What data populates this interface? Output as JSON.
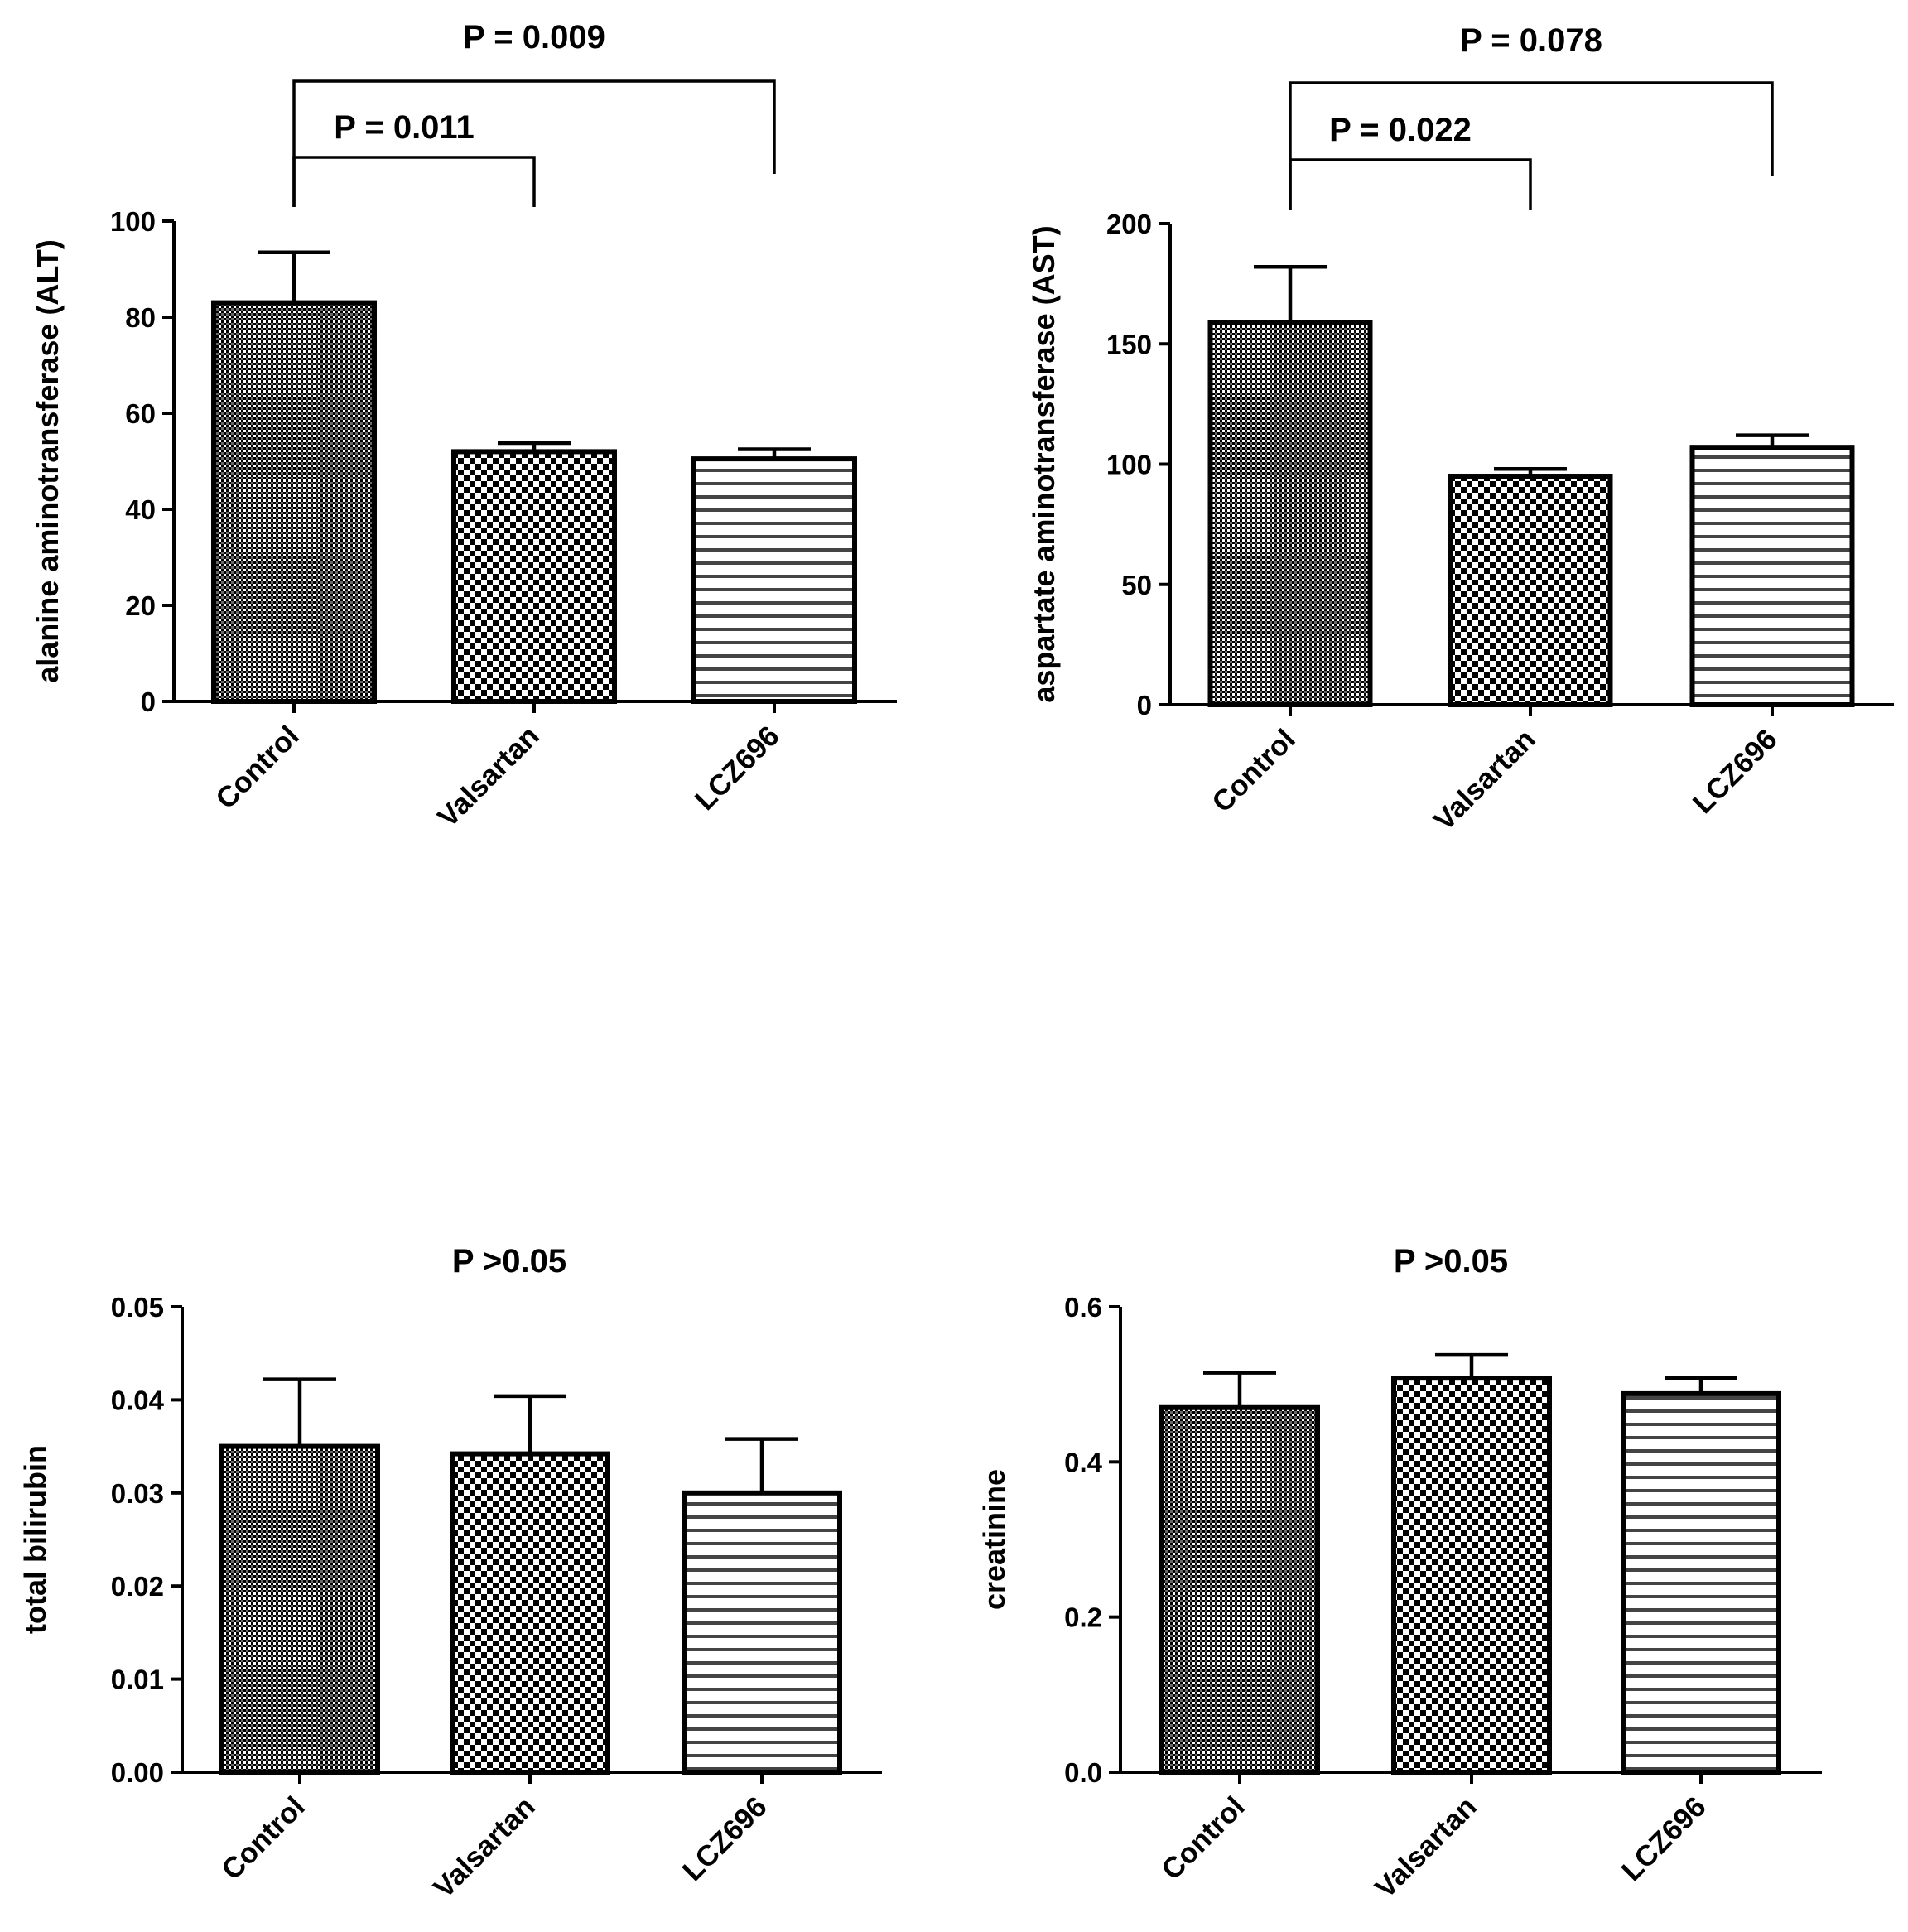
{
  "chart_data": [
    {
      "type": "bar",
      "id": "alt",
      "categories": [
        "Control",
        "Valsartan",
        "LCZ696"
      ],
      "values": [
        83,
        52,
        50.5
      ],
      "errors": [
        10.5,
        1.8,
        2
      ],
      "ylabel": "alanine aminotransferase (ALT)",
      "ylim": [
        0,
        100
      ],
      "yticks": [
        0,
        20,
        40,
        60,
        80,
        100
      ],
      "tick_decimals": 0,
      "patterns": [
        "fine-dots",
        "checker",
        "stripes"
      ],
      "comparisons": [
        {
          "label": "P = 0.011",
          "from": "Control",
          "to": "Valsartan"
        },
        {
          "label": "P = 0.009",
          "from": "Control",
          "to": "LCZ696"
        }
      ]
    },
    {
      "type": "bar",
      "id": "ast",
      "categories": [
        "Control",
        "Valsartan",
        "LCZ696"
      ],
      "values": [
        159,
        95,
        107
      ],
      "errors": [
        23,
        3,
        5
      ],
      "ylabel": "aspartate aminotransferase (AST)",
      "ylim": [
        0,
        200
      ],
      "yticks": [
        0,
        50,
        100,
        150,
        200
      ],
      "tick_decimals": 0,
      "patterns": [
        "fine-dots",
        "checker",
        "stripes"
      ],
      "comparisons": [
        {
          "label": "P = 0.022",
          "from": "Control",
          "to": "Valsartan"
        },
        {
          "label": "P = 0.078",
          "from": "Control",
          "to": "LCZ696"
        }
      ]
    },
    {
      "type": "bar",
      "id": "bilirubin",
      "categories": [
        "Control",
        "Valsartan",
        "LCZ696"
      ],
      "values": [
        0.035,
        0.0342,
        0.03
      ],
      "errors": [
        0.0072,
        0.0062,
        0.0058
      ],
      "ylabel": "total bilirubin",
      "ylim": [
        0,
        0.05
      ],
      "yticks": [
        0,
        0.01,
        0.02,
        0.03,
        0.04,
        0.05
      ],
      "tick_decimals": 2,
      "patterns": [
        "fine-dots",
        "checker",
        "stripes"
      ],
      "title": "P >0.05"
    },
    {
      "type": "bar",
      "id": "creatinine",
      "categories": [
        "Control",
        "Valsartan",
        "LCZ696"
      ],
      "values": [
        0.47,
        0.508,
        0.488
      ],
      "errors": [
        0.045,
        0.03,
        0.02
      ],
      "ylabel": "creatinine",
      "ylim": [
        0,
        0.6
      ],
      "yticks": [
        0,
        0.2,
        0.4,
        0.6
      ],
      "tick_decimals": 1,
      "patterns": [
        "fine-dots",
        "checker",
        "stripes"
      ],
      "title": "P >0.05"
    }
  ]
}
